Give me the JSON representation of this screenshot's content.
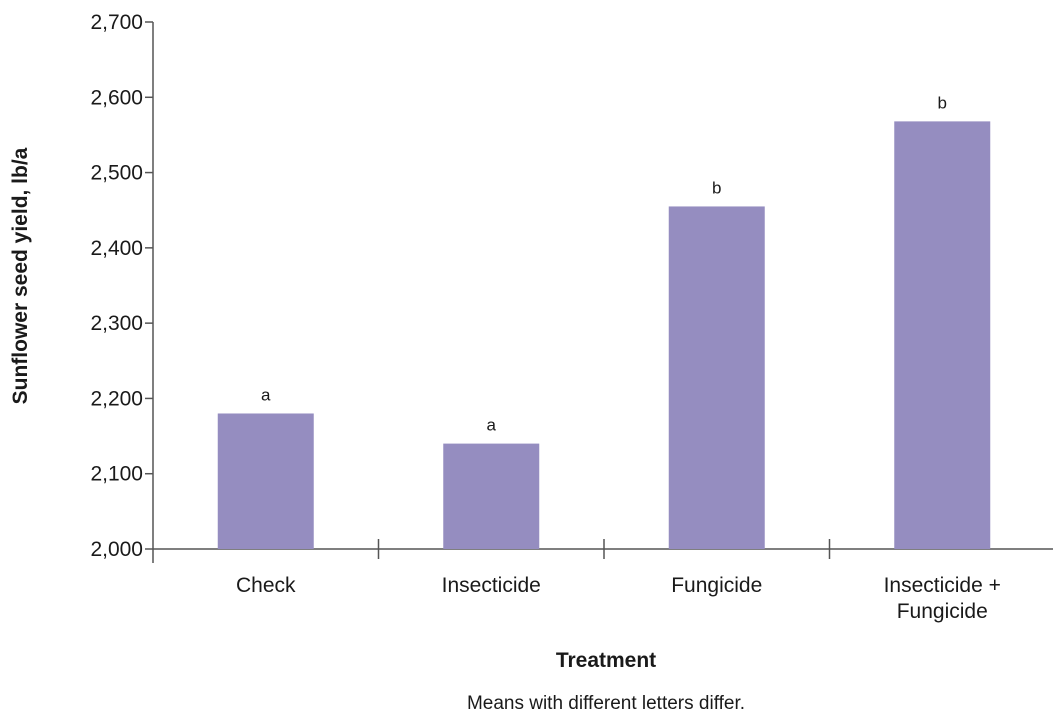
{
  "chart_data": {
    "type": "bar",
    "categories": [
      [
        "Check"
      ],
      [
        "Insecticide"
      ],
      [
        "Fungicide"
      ],
      [
        "Insecticide +",
        "Fungicide"
      ]
    ],
    "values": [
      2180,
      2140,
      2455,
      2568
    ],
    "bar_labels": [
      "a",
      "a",
      "b",
      "b"
    ],
    "ylabel": "Sunflower seed yield, lb/a",
    "xlabel": "Treatment",
    "ylim": [
      2000,
      2700
    ],
    "yticks": [
      2000,
      2100,
      2200,
      2300,
      2400,
      2500,
      2600,
      2700
    ],
    "ytick_labels": [
      "2,000",
      "2,100",
      "2,200",
      "2,300",
      "2,400",
      "2,500",
      "2,600",
      "2,700"
    ],
    "grid": false,
    "bar_color": "#958dc0",
    "note": "Means with different letters differ."
  }
}
